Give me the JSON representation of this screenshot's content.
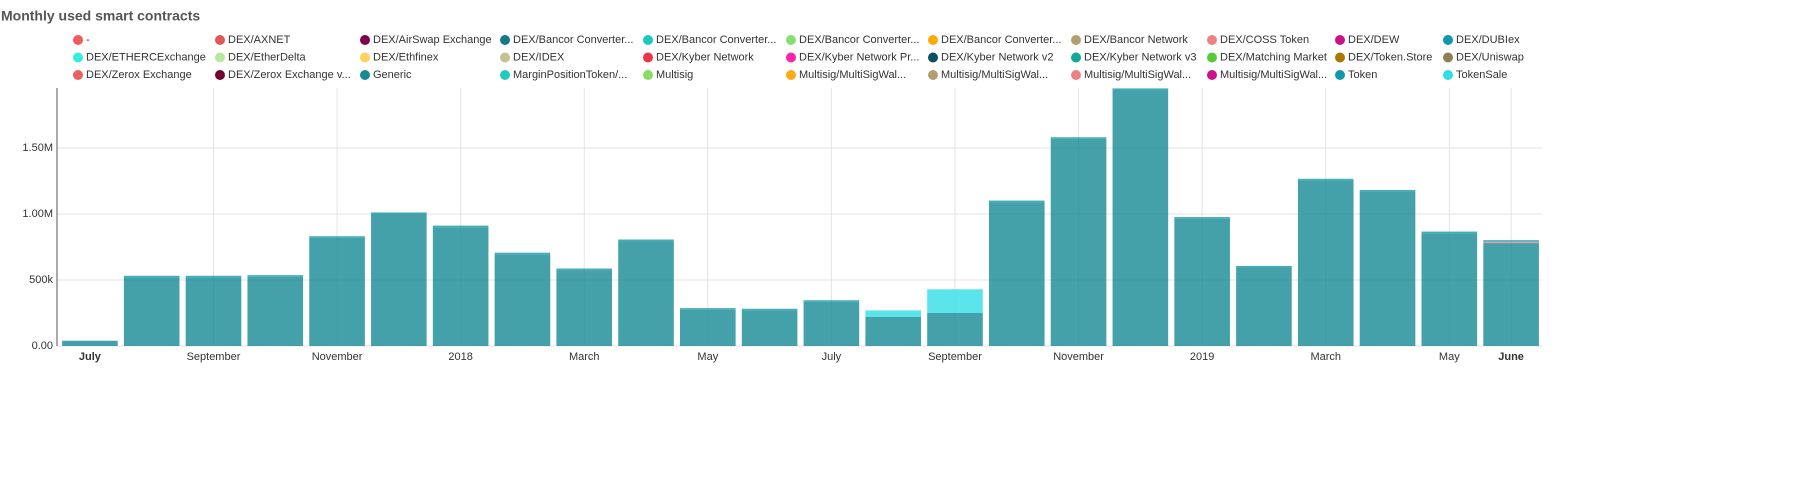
{
  "chart_data": {
    "type": "bar",
    "stacked": true,
    "title": "Monthly used smart contracts",
    "categories": [
      "July",
      null,
      "September",
      null,
      "November",
      null,
      "2018",
      null,
      "March",
      null,
      "May",
      null,
      "July",
      null,
      "September",
      null,
      "November",
      null,
      "2019",
      null,
      "March",
      null,
      "May",
      "June"
    ],
    "ylim": [
      0,
      1955000
    ],
    "yticks": [
      {
        "value": 0,
        "label": "0.00"
      },
      {
        "value": 500000,
        "label": "500k"
      },
      {
        "value": 1000000,
        "label": "1.00M"
      },
      {
        "value": 1500000,
        "label": "1.50M"
      }
    ],
    "grid": true,
    "series": [
      {
        "name": "-",
        "color": "#f05a5a",
        "values": [
          0,
          0,
          0,
          0,
          0,
          0,
          0,
          0,
          0,
          0,
          0,
          0,
          0,
          0,
          0,
          0,
          0,
          0,
          0,
          0,
          0,
          0,
          0,
          0
        ]
      },
      {
        "name": "DEX/AXNET",
        "color": "#e05858",
        "values": [
          0,
          0,
          0,
          0,
          0,
          0,
          0,
          0,
          0,
          0,
          0,
          0,
          0,
          0,
          0,
          0,
          0,
          0,
          0,
          0,
          0,
          0,
          0,
          0
        ]
      },
      {
        "name": "DEX/AirSwap Exchange",
        "color": "#7a0050",
        "values": [
          0,
          0,
          0,
          0,
          0,
          0,
          0,
          0,
          0,
          0,
          0,
          0,
          0,
          0,
          0,
          0,
          0,
          0,
          0,
          0,
          0,
          0,
          0,
          0
        ]
      },
      {
        "name": "DEX/Bancor Converter...",
        "color": "#147a8a",
        "values": [
          0,
          0,
          0,
          0,
          0,
          0,
          0,
          0,
          0,
          0,
          0,
          0,
          0,
          0,
          0,
          0,
          0,
          0,
          0,
          0,
          0,
          0,
          0,
          0
        ]
      },
      {
        "name": "DEX/Bancor Converter...",
        "color": "#19c9c0",
        "values": [
          0,
          0,
          0,
          0,
          0,
          0,
          0,
          0,
          0,
          0,
          0,
          0,
          0,
          0,
          0,
          0,
          0,
          0,
          0,
          0,
          0,
          0,
          0,
          0
        ]
      },
      {
        "name": "DEX/Bancor Converter...",
        "color": "#88dd77",
        "values": [
          0,
          0,
          0,
          0,
          0,
          0,
          0,
          0,
          0,
          0,
          0,
          0,
          0,
          0,
          0,
          0,
          0,
          0,
          0,
          0,
          0,
          0,
          0,
          0
        ]
      },
      {
        "name": "DEX/Bancor Converter...",
        "color": "#ffaa00",
        "values": [
          0,
          0,
          0,
          0,
          0,
          0,
          0,
          0,
          0,
          0,
          0,
          0,
          0,
          0,
          0,
          0,
          0,
          0,
          0,
          0,
          0,
          0,
          0,
          0
        ]
      },
      {
        "name": "DEX/Bancor Network",
        "color": "#b0a070",
        "values": [
          0,
          0,
          0,
          0,
          0,
          0,
          0,
          0,
          0,
          0,
          0,
          0,
          0,
          0,
          0,
          0,
          0,
          0,
          0,
          0,
          0,
          0,
          0,
          0
        ]
      },
      {
        "name": "DEX/COSS Token",
        "color": "#f08080",
        "values": [
          0,
          0,
          0,
          0,
          0,
          0,
          0,
          0,
          0,
          0,
          0,
          0,
          0,
          0,
          0,
          0,
          0,
          0,
          0,
          0,
          0,
          0,
          0,
          0
        ]
      },
      {
        "name": "DEX/DEW",
        "color": "#cc1188",
        "values": [
          0,
          0,
          0,
          0,
          0,
          0,
          0,
          0,
          0,
          0,
          0,
          0,
          0,
          0,
          0,
          0,
          0,
          0,
          0,
          0,
          0,
          0,
          0,
          0
        ]
      },
      {
        "name": "DEX/DUBIex",
        "color": "#1199aa",
        "values": [
          0,
          0,
          0,
          0,
          0,
          0,
          0,
          0,
          0,
          0,
          0,
          0,
          0,
          0,
          0,
          0,
          0,
          0,
          0,
          0,
          0,
          0,
          0,
          0
        ]
      },
      {
        "name": "DEX/ETHERCExchange",
        "color": "#33eedd",
        "values": [
          0,
          0,
          0,
          0,
          0,
          0,
          0,
          0,
          0,
          0,
          0,
          0,
          0,
          0,
          0,
          0,
          0,
          0,
          0,
          0,
          0,
          0,
          0,
          0
        ]
      },
      {
        "name": "DEX/EtherDelta",
        "color": "#b8e8a0",
        "values": [
          0,
          0,
          0,
          0,
          0,
          0,
          0,
          0,
          0,
          0,
          0,
          0,
          0,
          0,
          0,
          0,
          0,
          0,
          0,
          0,
          0,
          0,
          0,
          0
        ]
      },
      {
        "name": "DEX/Ethfinex",
        "color": "#ffd060",
        "values": [
          0,
          0,
          0,
          0,
          0,
          0,
          0,
          0,
          0,
          0,
          0,
          0,
          0,
          0,
          0,
          0,
          0,
          0,
          0,
          0,
          0,
          0,
          0,
          0
        ]
      },
      {
        "name": "DEX/IDEX",
        "color": "#c8c090",
        "values": [
          0,
          0,
          0,
          0,
          0,
          0,
          0,
          0,
          0,
          0,
          0,
          0,
          0,
          0,
          0,
          0,
          0,
          0,
          0,
          0,
          0,
          0,
          0,
          0
        ]
      },
      {
        "name": "DEX/Kyber Network",
        "color": "#ee3344",
        "values": [
          0,
          0,
          0,
          0,
          0,
          0,
          0,
          0,
          0,
          0,
          0,
          0,
          0,
          0,
          0,
          0,
          0,
          0,
          0,
          0,
          0,
          0,
          0,
          0
        ]
      },
      {
        "name": "DEX/Kyber Network Pr...",
        "color": "#ff22aa",
        "values": [
          0,
          0,
          0,
          0,
          0,
          0,
          0,
          0,
          0,
          0,
          0,
          0,
          0,
          0,
          0,
          0,
          0,
          0,
          0,
          0,
          0,
          0,
          0,
          0
        ]
      },
      {
        "name": "DEX/Kyber Network v2",
        "color": "#0a5060",
        "values": [
          0,
          0,
          0,
          0,
          0,
          0,
          0,
          0,
          0,
          0,
          0,
          0,
          0,
          0,
          0,
          0,
          0,
          0,
          0,
          0,
          0,
          0,
          0,
          0
        ]
      },
      {
        "name": "DEX/Kyber Network v3",
        "color": "#11aa99",
        "values": [
          0,
          0,
          0,
          0,
          0,
          0,
          0,
          0,
          0,
          0,
          0,
          0,
          0,
          0,
          0,
          0,
          0,
          0,
          0,
          0,
          0,
          0,
          0,
          0
        ]
      },
      {
        "name": "DEX/Matching Market",
        "color": "#55cc33",
        "values": [
          0,
          0,
          0,
          0,
          0,
          0,
          0,
          0,
          0,
          0,
          0,
          0,
          0,
          0,
          0,
          0,
          0,
          0,
          0,
          0,
          0,
          0,
          0,
          0
        ]
      },
      {
        "name": "DEX/Token.Store",
        "color": "#aa7700",
        "values": [
          0,
          0,
          0,
          0,
          0,
          0,
          0,
          0,
          0,
          0,
          0,
          0,
          0,
          0,
          0,
          0,
          0,
          0,
          0,
          0,
          0,
          0,
          0,
          0
        ]
      },
      {
        "name": "DEX/Uniswap",
        "color": "#8a8050",
        "values": [
          0,
          0,
          0,
          0,
          0,
          0,
          0,
          0,
          0,
          0,
          0,
          0,
          0,
          0,
          0,
          0,
          0,
          0,
          0,
          0,
          0,
          0,
          0,
          0
        ]
      },
      {
        "name": "DEX/Zerox Exchange",
        "color": "#e86060",
        "values": [
          0,
          0,
          0,
          0,
          0,
          0,
          0,
          0,
          0,
          0,
          0,
          0,
          0,
          0,
          0,
          0,
          0,
          0,
          0,
          0,
          0,
          0,
          0,
          0
        ]
      },
      {
        "name": "DEX/Zerox Exchange v...",
        "color": "#770033",
        "values": [
          0,
          0,
          0,
          0,
          0,
          0,
          0,
          0,
          0,
          0,
          0,
          0,
          0,
          0,
          0,
          0,
          0,
          0,
          0,
          0,
          0,
          0,
          0,
          0
        ]
      },
      {
        "name": "Generic",
        "color": "#168a94",
        "values": [
          40000,
          520000,
          520000,
          525000,
          820000,
          1000000,
          900000,
          695000,
          575000,
          795000,
          275000,
          270000,
          335000,
          220000,
          250000,
          1090000,
          1570000,
          1940000,
          965000,
          595000,
          1255000,
          1170000,
          855000,
          780000
        ]
      },
      {
        "name": "MarginPositionToken/...",
        "color": "#22ccbb",
        "values": [
          0,
          0,
          0,
          0,
          0,
          0,
          0,
          0,
          0,
          0,
          0,
          0,
          0,
          0,
          0,
          0,
          0,
          0,
          0,
          0,
          0,
          0,
          0,
          0
        ]
      },
      {
        "name": "Multisig",
        "color": "#88dd66",
        "values": [
          0,
          0,
          0,
          0,
          0,
          0,
          0,
          0,
          0,
          0,
          0,
          0,
          0,
          0,
          0,
          0,
          0,
          0,
          0,
          0,
          0,
          0,
          0,
          0
        ]
      },
      {
        "name": "Multisig/MultiSigWal...",
        "color": "#ffaa11",
        "values": [
          0,
          0,
          0,
          0,
          0,
          0,
          0,
          0,
          0,
          0,
          0,
          0,
          0,
          0,
          0,
          0,
          0,
          0,
          0,
          0,
          0,
          0,
          0,
          0
        ]
      },
      {
        "name": "Multisig/MultiSigWal...",
        "color": "#b0a070",
        "values": [
          0,
          0,
          0,
          0,
          0,
          0,
          0,
          0,
          0,
          0,
          0,
          0,
          0,
          0,
          0,
          0,
          0,
          0,
          0,
          0,
          0,
          0,
          0,
          0
        ]
      },
      {
        "name": "Multisig/MultiSigWal...",
        "color": "#f08080",
        "values": [
          0,
          0,
          0,
          0,
          0,
          0,
          0,
          0,
          0,
          0,
          0,
          0,
          0,
          0,
          0,
          0,
          0,
          0,
          0,
          0,
          0,
          0,
          0,
          10000
        ]
      },
      {
        "name": "Multisig/MultiSigWal...",
        "color": "#cc1188",
        "values": [
          0,
          0,
          0,
          0,
          0,
          0,
          0,
          0,
          0,
          0,
          0,
          0,
          0,
          0,
          0,
          0,
          0,
          0,
          0,
          0,
          0,
          0,
          0,
          0
        ]
      },
      {
        "name": "Token",
        "color": "#1199aa",
        "values": [
          0,
          12000,
          12000,
          12000,
          12000,
          12000,
          12000,
          12000,
          12000,
          12000,
          12000,
          12000,
          12000,
          0,
          0,
          12000,
          12000,
          12000,
          12000,
          12000,
          12000,
          12000,
          12000,
          12000
        ]
      },
      {
        "name": "TokenSale",
        "color": "#33dde8",
        "values": [
          0,
          0,
          0,
          0,
          0,
          0,
          0,
          0,
          0,
          0,
          0,
          0,
          0,
          50000,
          180000,
          0,
          0,
          0,
          0,
          0,
          0,
          0,
          0,
          0
        ]
      }
    ]
  }
}
